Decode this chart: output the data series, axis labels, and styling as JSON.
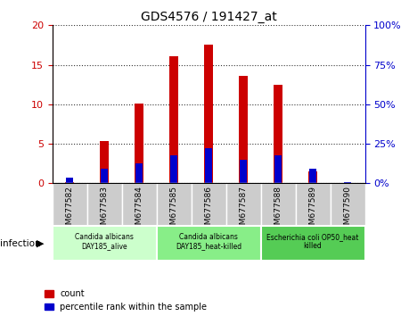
{
  "title": "GDS4576 / 191427_at",
  "samples": [
    "GSM677582",
    "GSM677583",
    "GSM677584",
    "GSM677585",
    "GSM677586",
    "GSM677587",
    "GSM677588",
    "GSM677589",
    "GSM677590"
  ],
  "counts": [
    0.12,
    5.3,
    10.1,
    16.1,
    17.5,
    13.6,
    12.5,
    1.5,
    0.05
  ],
  "percentile_ranks": [
    3.5,
    9.0,
    12.5,
    17.5,
    22.0,
    15.0,
    17.5,
    9.0,
    0.5
  ],
  "count_color": "#cc0000",
  "percentile_color": "#0000cc",
  "ylim_left": [
    0,
    20
  ],
  "ylim_right": [
    0,
    100
  ],
  "yticks_left": [
    0,
    5,
    10,
    15,
    20
  ],
  "yticks_right": [
    0,
    25,
    50,
    75,
    100
  ],
  "ytick_labels_right": [
    "0%",
    "25%",
    "50%",
    "75%",
    "100%"
  ],
  "groups": [
    {
      "label": "Candida albicans\nDAY185_alive",
      "start": 0,
      "end": 3,
      "color": "#ccffcc"
    },
    {
      "label": "Candida albicans\nDAY185_heat-killed",
      "start": 3,
      "end": 6,
      "color": "#88ee88"
    },
    {
      "label": "Escherichia coli OP50_heat\nkilled",
      "start": 6,
      "end": 9,
      "color": "#55cc55"
    }
  ],
  "infection_label": "infection",
  "bar_width": 0.25,
  "percentile_bar_width": 0.18,
  "xtick_bg_color": "#cccccc"
}
